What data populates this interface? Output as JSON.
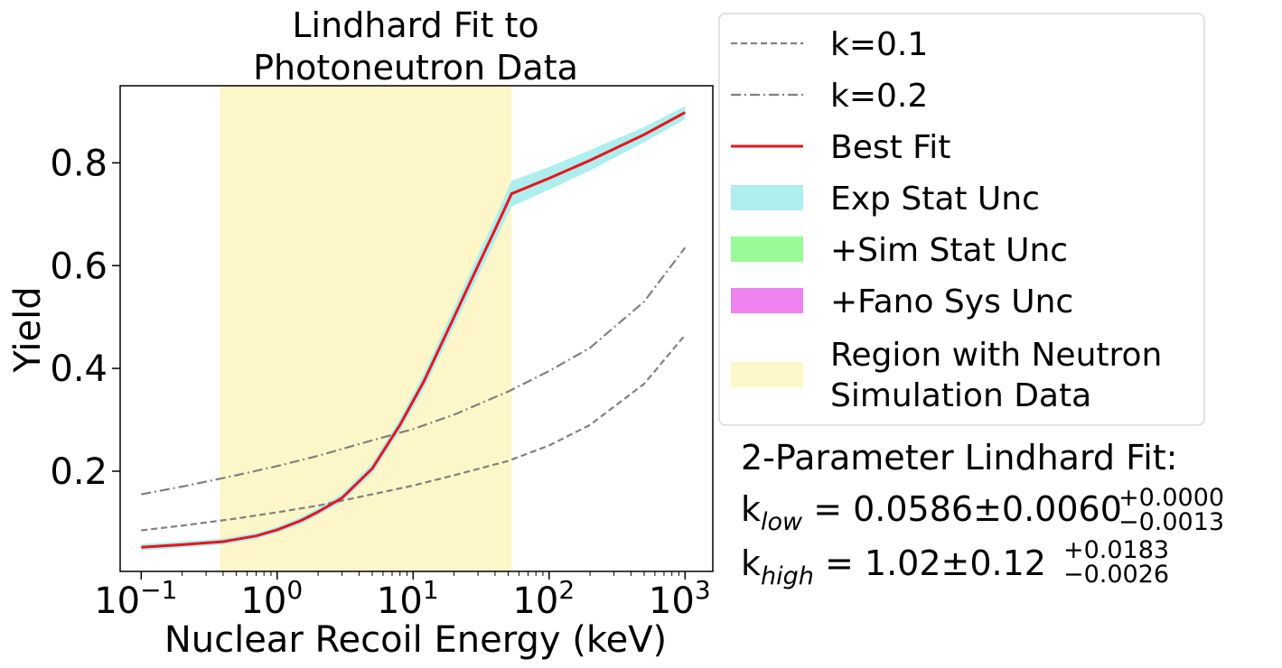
{
  "chart_data": {
    "type": "line",
    "title_line1": "Lindhard Fit to",
    "title_line2": "Photoneutron Data",
    "xlabel": "Nuclear Recoil Energy (keV)",
    "ylabel": "Yield",
    "xscale": "log",
    "xlim": [
      0.07,
      1600
    ],
    "ylim": [
      0.005,
      0.95
    ],
    "grid": false,
    "x_ticks": [
      {
        "value": 0.1,
        "base": "10",
        "exp": "−1"
      },
      {
        "value": 1,
        "base": "10",
        "exp": "0"
      },
      {
        "value": 10,
        "base": "10",
        "exp": "1"
      },
      {
        "value": 100,
        "base": "10",
        "exp": "2"
      },
      {
        "value": 1000,
        "base": "10",
        "exp": "3"
      }
    ],
    "y_ticks": [
      {
        "value": 0.2,
        "label": "0.2"
      },
      {
        "value": 0.4,
        "label": "0.4"
      },
      {
        "value": 0.6,
        "label": "0.6"
      },
      {
        "value": 0.8,
        "label": "0.8"
      }
    ],
    "region": {
      "name": "Region with Neutron Simulation Data",
      "x_start": 0.38,
      "x_end": 53,
      "color": "#fdf6c8"
    },
    "series": [
      {
        "name": "k=0.1",
        "style": "dashed",
        "color": "#808080",
        "x": [
          0.1,
          0.2,
          0.5,
          1,
          2,
          5,
          10,
          20,
          50,
          100,
          200,
          500,
          1000
        ],
        "y": [
          0.085,
          0.094,
          0.108,
          0.12,
          0.133,
          0.155,
          0.172,
          0.192,
          0.22,
          0.25,
          0.29,
          0.37,
          0.465
        ]
      },
      {
        "name": "k=0.2",
        "style": "dashdot",
        "color": "#808080",
        "x": [
          0.1,
          0.2,
          0.5,
          1,
          2,
          5,
          10,
          20,
          50,
          100,
          200,
          500,
          1000
        ],
        "y": [
          0.155,
          0.17,
          0.192,
          0.21,
          0.23,
          0.26,
          0.282,
          0.31,
          0.355,
          0.395,
          0.44,
          0.53,
          0.635
        ]
      },
      {
        "name": "Best Fit",
        "style": "solid",
        "color": "#e8161b",
        "x": [
          0.1,
          0.2,
          0.4,
          0.7,
          1,
          1.5,
          2,
          3,
          5,
          8,
          12,
          20,
          30,
          40,
          53,
          100,
          200,
          500,
          1000
        ],
        "y": [
          0.052,
          0.057,
          0.063,
          0.074,
          0.086,
          0.104,
          0.121,
          0.148,
          0.205,
          0.29,
          0.375,
          0.5,
          0.6,
          0.67,
          0.74,
          0.77,
          0.805,
          0.855,
          0.898
        ]
      }
    ],
    "band": {
      "name": "Exp Stat Unc",
      "color": "#aeeeee",
      "x": [
        0.1,
        0.2,
        0.4,
        0.7,
        1,
        1.5,
        2,
        3,
        5,
        8,
        12,
        20,
        30,
        40,
        53,
        100,
        200,
        500,
        1000
      ],
      "lower": [
        0.046,
        0.051,
        0.057,
        0.068,
        0.08,
        0.097,
        0.114,
        0.14,
        0.195,
        0.278,
        0.36,
        0.482,
        0.58,
        0.648,
        0.715,
        0.748,
        0.785,
        0.84,
        0.885
      ],
      "upper": [
        0.058,
        0.063,
        0.069,
        0.08,
        0.092,
        0.111,
        0.128,
        0.156,
        0.215,
        0.302,
        0.39,
        0.518,
        0.62,
        0.692,
        0.765,
        0.792,
        0.825,
        0.87,
        0.91
      ]
    },
    "legend": {
      "placement": "outside-top-right",
      "entries": [
        {
          "label": "k=0.1",
          "kind": "dashed",
          "color": "#808080"
        },
        {
          "label": "k=0.2",
          "kind": "dashdot",
          "color": "#808080"
        },
        {
          "label": "Best Fit",
          "kind": "line",
          "color": "#e8161b"
        },
        {
          "label": "Exp Stat Unc",
          "kind": "patch",
          "color": "#aeeeee"
        },
        {
          "label": "+Sim Stat Unc",
          "kind": "patch",
          "color": "#98fb98"
        },
        {
          "label": "+Fano Sys Unc",
          "kind": "patch",
          "color": "#ee82ee"
        },
        {
          "label": "Region with Neutron",
          "label2": "Simulation Data",
          "kind": "patch",
          "color": "#fdf6c8"
        }
      ]
    },
    "annotation": {
      "title": "2-Parameter Lindhard Fit:",
      "k_low": {
        "k": "k",
        "sub": "low",
        "eq": " = 0.0586±0.0060",
        "plus": "+0.0000",
        "minus": "−0.0013"
      },
      "k_high": {
        "k": "k",
        "sub": "high",
        "eq": " = 1.02±0.12",
        "plus": "+0.0183",
        "minus": "−0.0026"
      }
    }
  }
}
